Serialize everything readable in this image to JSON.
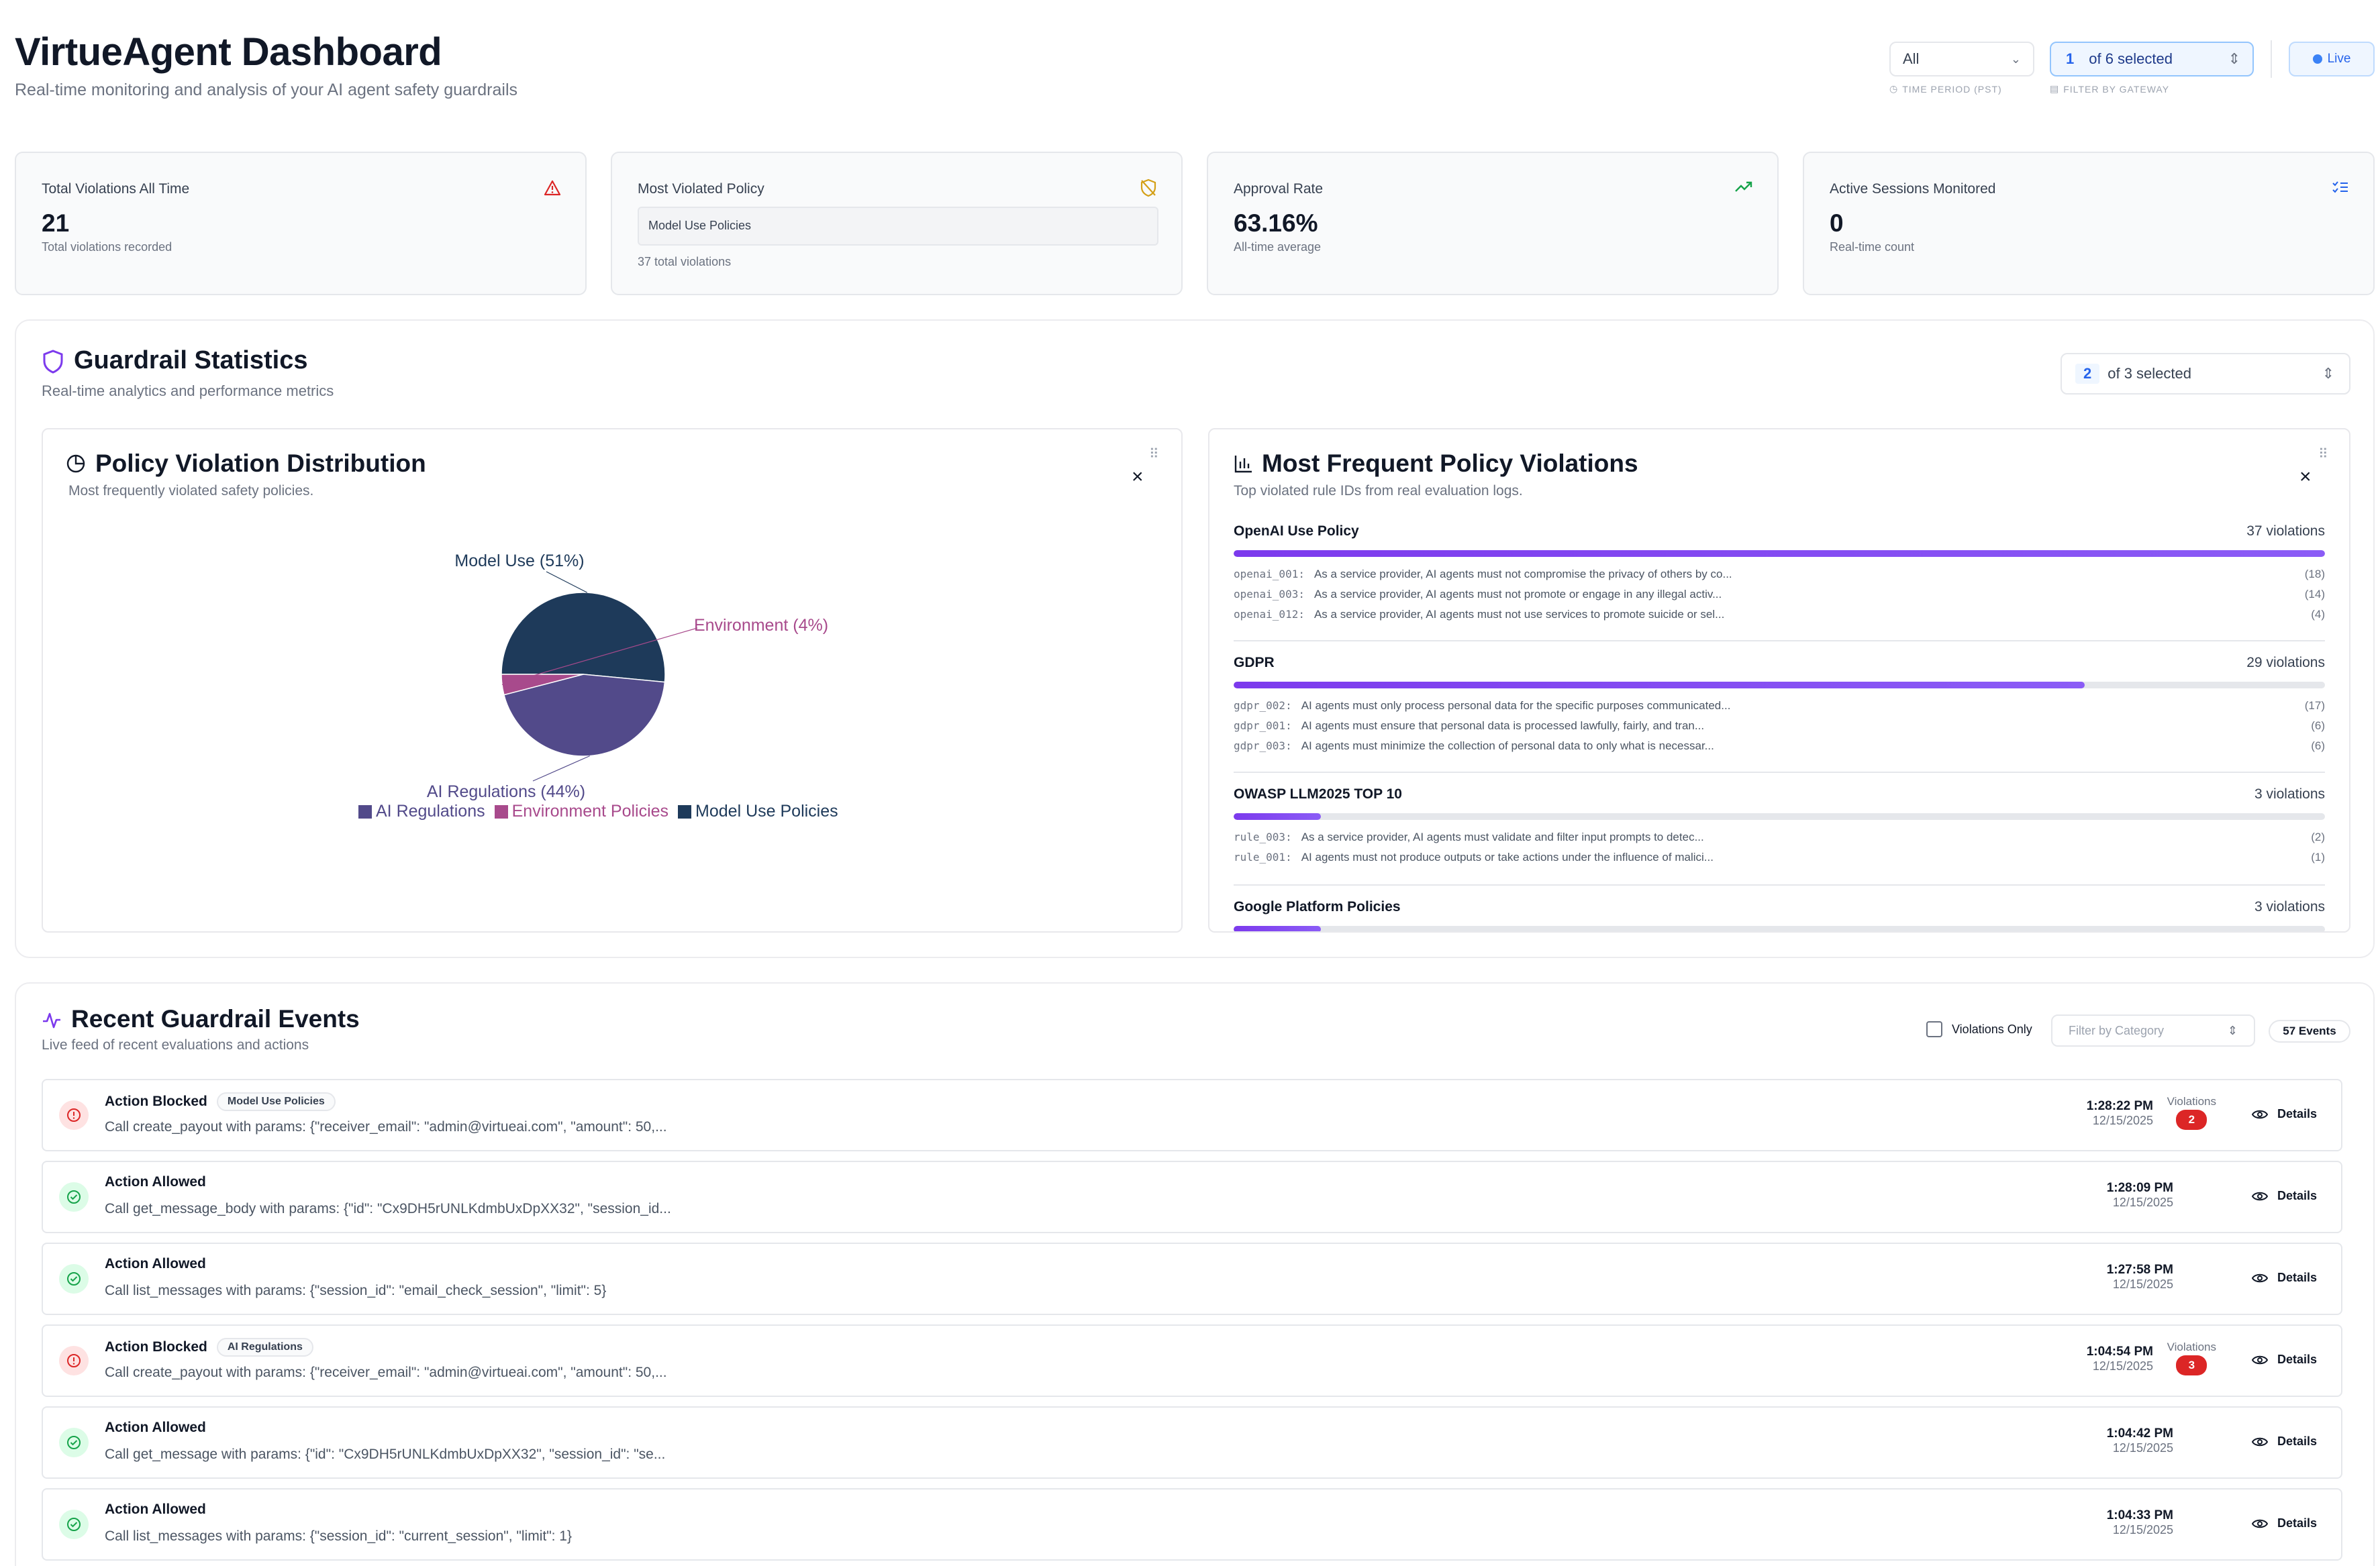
{
  "header": {
    "title": "VirtueAgent Dashboard",
    "subtitle": "Real-time monitoring and analysis of your AI agent safety guardrails",
    "time_period": {
      "value": "All",
      "label": "TIME PERIOD (PST)"
    },
    "gateway_filter": {
      "count": "1",
      "text": "of 6 selected",
      "label": "FILTER BY GATEWAY"
    },
    "live_label": "Live"
  },
  "stats": [
    {
      "label": "Total Violations All Time",
      "value": "21",
      "sub": "Total violations recorded",
      "icon": "alert-triangle-icon"
    },
    {
      "label": "Most Violated Policy",
      "value": "Model Use Policies",
      "sub": "37 total violations",
      "icon": "shield-off-icon"
    },
    {
      "label": "Approval Rate",
      "value": "63.16%",
      "sub": "All-time average",
      "icon": "trending-up-icon"
    },
    {
      "label": "Active Sessions Monitored",
      "value": "0",
      "sub": "Real-time count",
      "icon": "list-checks-icon"
    }
  ],
  "guardrail": {
    "title": "Guardrail Statistics",
    "subtitle": "Real-time analytics and performance metrics",
    "selector": {
      "count": "2",
      "text": "of 3 selected"
    }
  },
  "distribution": {
    "title": "Policy Violation Distribution",
    "subtitle": "Most frequently violated safety policies.",
    "legend": [
      "AI Regulations",
      "Environment Policies",
      "Model Use Policies"
    ]
  },
  "chart_data": {
    "type": "pie",
    "categories": [
      "Model Use",
      "AI Regulations",
      "Environment"
    ],
    "values": [
      51,
      44,
      4
    ],
    "slice_labels": [
      "Model Use (51%)",
      "AI Regulations (44%)",
      "Environment (4%)"
    ],
    "colors": [
      "#1e3a5a",
      "#524a8a",
      "#a84a8c"
    ],
    "legend": [
      "AI Regulations",
      "Environment Policies",
      "Model Use Policies"
    ],
    "legend_colors": [
      "#524a8a",
      "#a84a8c",
      "#1e3a5a"
    ],
    "legend_placement": "bottom"
  },
  "frequent": {
    "title": "Most Frequent Policy Violations",
    "subtitle": "Top violated rule IDs from real evaluation logs.",
    "groups": [
      {
        "name": "OpenAI Use Policy",
        "count": "37 violations",
        "fraction": 1.0,
        "rules": [
          {
            "id": "openai_001:",
            "text": "As a service provider, AI agents must not compromise the privacy of others by co...",
            "count": "(18)"
          },
          {
            "id": "openai_003:",
            "text": "As a service provider, AI agents must not promote or engage in any illegal activ...",
            "count": "(14)"
          },
          {
            "id": "openai_012:",
            "text": "As a service provider, AI agents must not use services to promote suicide or sel...",
            "count": "(4)"
          }
        ]
      },
      {
        "name": "GDPR",
        "count": "29 violations",
        "fraction": 0.78,
        "rules": [
          {
            "id": "gdpr_002:",
            "text": "AI agents must only process personal data for the specific purposes communicated...",
            "count": "(17)"
          },
          {
            "id": "gdpr_001:",
            "text": "AI agents must ensure that personal data is processed lawfully, fairly, and tran...",
            "count": "(6)"
          },
          {
            "id": "gdpr_003:",
            "text": "AI agents must minimize the collection of personal data to only what is necessar...",
            "count": "(6)"
          }
        ]
      },
      {
        "name": "OWASP LLM2025 TOP 10",
        "count": "3 violations",
        "fraction": 0.08,
        "rules": [
          {
            "id": "rule_003:",
            "text": "As a service provider, AI agents must validate and filter input prompts to detec...",
            "count": "(2)"
          },
          {
            "id": "rule_001:",
            "text": "AI agents must not produce outputs or take actions under the influence of malici...",
            "count": "(1)"
          }
        ]
      },
      {
        "name": "Google Platform Policies",
        "count": "3 violations",
        "fraction": 0.08,
        "rules": []
      }
    ]
  },
  "events_section": {
    "title": "Recent Guardrail Events",
    "subtitle": "Live feed of recent evaluations and actions",
    "violations_only": "Violations Only",
    "category_placeholder": "Filter by Category",
    "event_count": "57 Events",
    "details_label": "Details",
    "violations_label": "Violations"
  },
  "events": [
    {
      "status": "blocked",
      "title": "Action Blocked",
      "badge": "Model Use Policies",
      "desc": "Call create_payout with params: {\"receiver_email\": \"admin@virtueai.com\", \"amount\": 50,...",
      "time": "1:28:22 PM",
      "date": "12/15/2025",
      "violations": "2"
    },
    {
      "status": "allowed",
      "title": "Action Allowed",
      "badge": "",
      "desc": "Call get_message_body with params: {\"id\": \"Cx9DH5rUNLKdmbUxDpXX32\", \"session_id...",
      "time": "1:28:09 PM",
      "date": "12/15/2025",
      "violations": ""
    },
    {
      "status": "allowed",
      "title": "Action Allowed",
      "badge": "",
      "desc": "Call list_messages with params: {\"session_id\": \"email_check_session\", \"limit\": 5}",
      "time": "1:27:58 PM",
      "date": "12/15/2025",
      "violations": ""
    },
    {
      "status": "blocked",
      "title": "Action Blocked",
      "badge": "AI Regulations",
      "desc": "Call create_payout with params: {\"receiver_email\": \"admin@virtueai.com\", \"amount\": 50,...",
      "time": "1:04:54 PM",
      "date": "12/15/2025",
      "violations": "3"
    },
    {
      "status": "allowed",
      "title": "Action Allowed",
      "badge": "",
      "desc": "Call get_message with params: {\"id\": \"Cx9DH5rUNLKdmbUxDpXX32\", \"session_id\": \"se...",
      "time": "1:04:42 PM",
      "date": "12/15/2025",
      "violations": ""
    },
    {
      "status": "allowed",
      "title": "Action Allowed",
      "badge": "",
      "desc": "Call list_messages with params: {\"session_id\": \"current_session\", \"limit\": 1}",
      "time": "1:04:33 PM",
      "date": "12/15/2025",
      "violations": ""
    }
  ]
}
